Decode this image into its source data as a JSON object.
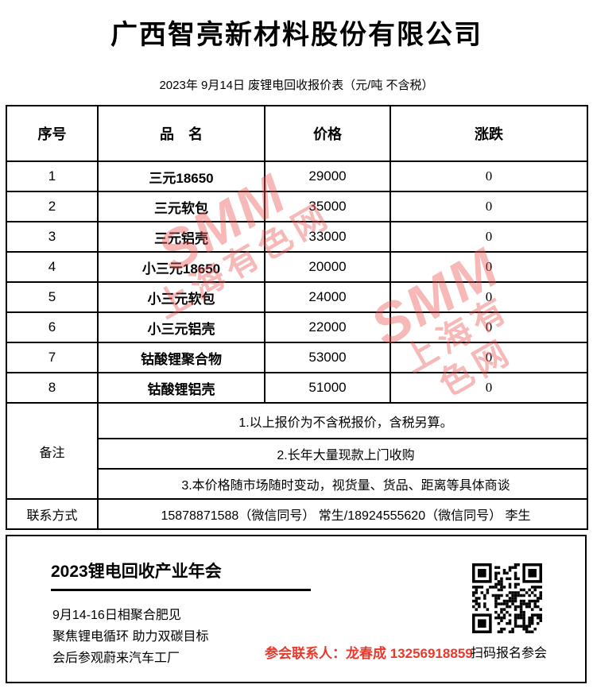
{
  "page": {
    "title": "广西智亮新材料股份有限公司",
    "subtitle": "2023年 9月14日 废锂电回收报价表（元/吨  不含税）"
  },
  "table": {
    "headers": {
      "index": "序号",
      "name": "品　名",
      "price": "价格",
      "change": "涨跌"
    },
    "rows": [
      {
        "index": "1",
        "name": "三元18650",
        "price": "29000",
        "change": "0"
      },
      {
        "index": "2",
        "name": "三元软包",
        "price": "35000",
        "change": "0"
      },
      {
        "index": "3",
        "name": "三元铝壳",
        "price": "33000",
        "change": "0"
      },
      {
        "index": "4",
        "name": "小三元18650",
        "price": "20000",
        "change": "0"
      },
      {
        "index": "5",
        "name": "小三元软包",
        "price": "24000",
        "change": "0"
      },
      {
        "index": "6",
        "name": "小三元铝壳",
        "price": "22000",
        "change": "0"
      },
      {
        "index": "7",
        "name": "钴酸锂聚合物",
        "price": "53000",
        "change": "0"
      },
      {
        "index": "8",
        "name": "钴酸锂铝壳",
        "price": "51000",
        "change": "0"
      }
    ],
    "notes_label": "备注",
    "notes": [
      "1.以上报价为不含税报价，含税另算。",
      "2.长年大量现款上门收购",
      "3.本价格随市场随时变动，视货量、货品、距离等具体商谈"
    ],
    "contact_label": "联系方式",
    "contact_value": "15878871588（微信同号） 常生/18924555620（微信同号）  李生"
  },
  "watermark": {
    "line1": "SMM",
    "line2": "上海有色网",
    "color": "rgba(236,85,85,0.42)"
  },
  "footer": {
    "event_title": "2023锂电回收产业年会",
    "event_lines": [
      "9月14-16日相聚合肥见",
      "聚焦锂电循环  助力双碳目标",
      "会后参观蔚来汽车工厂"
    ],
    "contact_red": "参会联系人：龙春成 13256918859",
    "contact_red_color": "#e9382c",
    "qr_icon": "qr-code",
    "qr_caption": "扫码报名参会"
  }
}
